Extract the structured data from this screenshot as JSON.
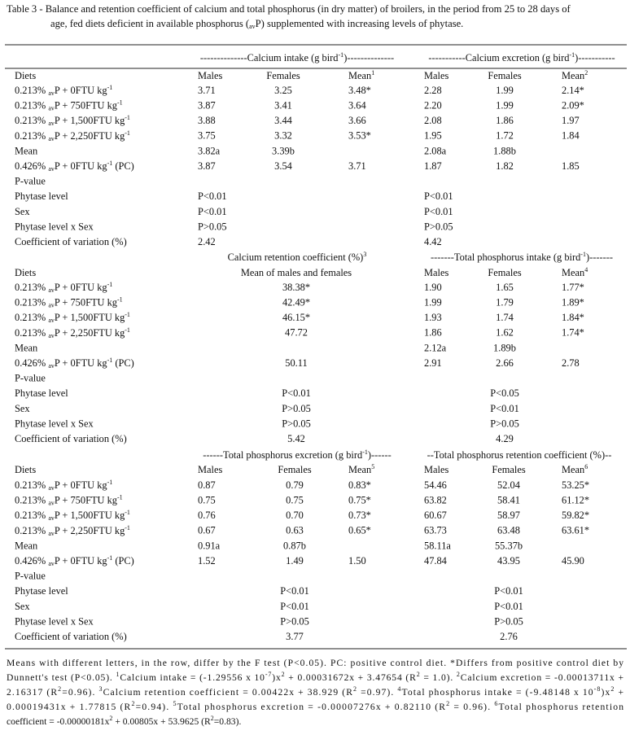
{
  "header": {
    "title": [
      [
        "Table 3 - Balance and retention coefficient of calcium and total phosphorus (in dry matter) of broilers, in the period from 25 to 28 days of"
      ],
      [
        "age, fed diets deficient in available phosphorus (",
        {
          "sub": "av"
        },
        "P) supplemented with increasing levels of phytase."
      ]
    ]
  },
  "table": {
    "sections": [
      {
        "left_header": [
          "--------------Calcium intake (g bird",
          {
            "sup": "-1"
          },
          ")--------------"
        ],
        "right_header": [
          "-----------Calcium excretion (g bird",
          {
            "sup": "-1"
          },
          ")-----------"
        ],
        "columns": {
          "label": "Diets",
          "cells": [
            "Males",
            "Females",
            [
              "Mean",
              {
                "sup": "1"
              }
            ],
            "Males",
            "Females",
            [
              "Mean",
              {
                "sup": "2"
              }
            ]
          ]
        },
        "rows": [
          {
            "label": [
              "0.213% ",
              {
                "sub": "av"
              },
              "P + 0FTU kg",
              {
                "sup": "-1"
              }
            ],
            "cells": [
              "3.71",
              "3.25",
              "3.48*",
              "2.28",
              "1.99",
              "2.14*"
            ]
          },
          {
            "label": [
              "0.213% ",
              {
                "sub": "av"
              },
              "P + 750FTU kg",
              {
                "sup": "-1"
              }
            ],
            "cells": [
              "3.87",
              "3.41",
              "3.64",
              "2.20",
              "1.99",
              "2.09*"
            ]
          },
          {
            "label": [
              "0.213% ",
              {
                "sub": "av"
              },
              "P + 1,500FTU kg",
              {
                "sup": "-1"
              }
            ],
            "cells": [
              "3.88",
              "3.44",
              "3.66",
              "2.08",
              "1.86",
              "1.97"
            ]
          },
          {
            "label": [
              "0.213% ",
              {
                "sub": "av"
              },
              "P + 2,250FTU kg",
              {
                "sup": "-1"
              }
            ],
            "cells": [
              "3.75",
              "3.32",
              "3.53*",
              "1.95",
              "1.72",
              "1.84"
            ]
          },
          {
            "label": "Mean",
            "cells": [
              "3.82a",
              "3.39b",
              null,
              "2.08a",
              "1.88b",
              null
            ]
          },
          {
            "label": [
              "0.426% ",
              {
                "sub": "av"
              },
              "P + 0FTU kg",
              {
                "sup": "-1"
              },
              " (PC)"
            ],
            "cells": [
              "3.87",
              "3.54",
              "3.71",
              "1.87",
              "1.82",
              "1.85"
            ]
          },
          {
            "label": "P-value"
          },
          {
            "label": "Phytase level",
            "cells": [
              "P<0.01",
              null,
              null,
              "P<0.01",
              null,
              null
            ]
          },
          {
            "label": "Sex",
            "cells": [
              "P<0.01",
              null,
              null,
              "P<0.01",
              null,
              null
            ]
          },
          {
            "label": "Phytase level x Sex",
            "cells": [
              "P>0.05",
              null,
              null,
              "P>0.05",
              null,
              null
            ]
          },
          {
            "label": "Coefficient of variation (%)",
            "cells": [
              "2.42",
              null,
              null,
              "4.42",
              null,
              null
            ]
          }
        ]
      },
      {
        "left_header": [
          "Calcium retention coefficient (%)",
          {
            "sup": "3"
          }
        ],
        "right_header": [
          "-------Total phosphorus intake (g bird",
          {
            "sup": "-1"
          },
          ")-------"
        ],
        "columns": {
          "label": "Diets",
          "cells": [
            null,
            "Mean of males and females",
            null,
            "Males",
            "Females",
            [
              "Mean",
              {
                "sup": "4"
              }
            ]
          ]
        },
        "rows": [
          {
            "label": [
              "0.213% ",
              {
                "sub": "av"
              },
              "P + 0FTU kg",
              {
                "sup": "-1"
              }
            ],
            "cells": [
              null,
              "38.38*",
              null,
              "1.90",
              "1.65",
              "1.77*"
            ]
          },
          {
            "label": [
              "0.213% ",
              {
                "sub": "av"
              },
              "P + 750FTU kg",
              {
                "sup": "-1"
              }
            ],
            "cells": [
              null,
              "42.49*",
              null,
              "1.99",
              "1.79",
              "1.89*"
            ]
          },
          {
            "label": [
              "0.213% ",
              {
                "sub": "av"
              },
              "P + 1,500FTU kg",
              {
                "sup": "-1"
              }
            ],
            "cells": [
              null,
              "46.15*",
              null,
              "1.93",
              "1.74",
              "1.84*"
            ]
          },
          {
            "label": [
              "0.213% ",
              {
                "sub": "av"
              },
              "P + 2,250FTU kg",
              {
                "sup": "-1"
              }
            ],
            "cells": [
              null,
              "47.72",
              null,
              "1.86",
              "1.62",
              "1.74*"
            ]
          },
          {
            "label": "Mean",
            "cells": [
              null,
              null,
              null,
              "2.12a",
              "1.89b",
              null
            ]
          },
          {
            "label": [
              "0.426% ",
              {
                "sub": "av"
              },
              "P + 0FTU kg",
              {
                "sup": "-1"
              },
              " (PC)"
            ],
            "cells": [
              null,
              "50.11",
              null,
              "2.91",
              "2.66",
              "2.78"
            ]
          },
          {
            "label": "P-value"
          },
          {
            "label": "Phytase level",
            "cells": [
              null,
              "P<0.01",
              null,
              null,
              "P<0.05",
              null
            ]
          },
          {
            "label": "Sex",
            "cells": [
              null,
              "P>0.05",
              null,
              null,
              "P<0.01",
              null
            ]
          },
          {
            "label": "Phytase level x Sex",
            "cells": [
              null,
              "P>0.05",
              null,
              null,
              "P>0.05",
              null
            ]
          },
          {
            "label": "Coefficient of variation (%)",
            "cells": [
              null,
              "5.42",
              null,
              null,
              "4.29",
              null
            ]
          }
        ]
      },
      {
        "left_header": [
          "------Total phosphorus excretion (g bird",
          {
            "sup": "-1"
          },
          ")------"
        ],
        "right_header": [
          "--Total phosphorus retention coefficient (%)--"
        ],
        "columns": {
          "label": "Diets",
          "cells": [
            "Males",
            "Females",
            [
              "Mean",
              {
                "sup": "5"
              }
            ],
            "Males",
            "Females",
            [
              "Mean",
              {
                "sup": "6"
              }
            ]
          ]
        },
        "rows": [
          {
            "label": [
              "0.213% ",
              {
                "sub": "av"
              },
              "P + 0FTU kg",
              {
                "sup": "-1"
              }
            ],
            "cells": [
              "0.87",
              "0.79",
              "0.83*",
              "54.46",
              "52.04",
              "53.25*"
            ]
          },
          {
            "label": [
              "0.213% ",
              {
                "sub": "av"
              },
              "P + 750FTU kg",
              {
                "sup": "-1"
              }
            ],
            "cells": [
              "0.75",
              "0.75",
              "0.75*",
              "63.82",
              "58.41",
              "61.12*"
            ]
          },
          {
            "label": [
              "0.213% ",
              {
                "sub": "av"
              },
              "P + 1,500FTU kg",
              {
                "sup": "-1"
              }
            ],
            "cells": [
              "0.76",
              "0.70",
              "0.73*",
              "60.67",
              "58.97",
              "59.82*"
            ]
          },
          {
            "label": [
              "0.213% ",
              {
                "sub": "av"
              },
              "P + 2,250FTU kg",
              {
                "sup": "-1"
              }
            ],
            "cells": [
              "0.67",
              "0.63",
              "0.65*",
              "63.73",
              "63.48",
              "63.61*"
            ]
          },
          {
            "label": "Mean",
            "cells": [
              "0.91a",
              "0.87b",
              null,
              "58.11a",
              "55.37b",
              null
            ]
          },
          {
            "label": [
              "0.426% ",
              {
                "sub": "av"
              },
              "P + 0FTU kg",
              {
                "sup": "-1"
              },
              " (PC)"
            ],
            "cells": [
              "1.52",
              "1.49",
              "1.50",
              "47.84",
              "43.95",
              "45.90"
            ]
          },
          {
            "label": "P-value"
          },
          {
            "label": "Phytase level",
            "cells": [
              null,
              "P<0.01",
              null,
              null,
              "P<0.01",
              null
            ]
          },
          {
            "label": "Sex",
            "cells": [
              null,
              "P<0.01",
              null,
              null,
              "P<0.01",
              null
            ]
          },
          {
            "label": "Phytase level x Sex",
            "cells": [
              null,
              "P>0.05",
              null,
              null,
              "P>0.05",
              null
            ]
          },
          {
            "label": "Coefficient of variation (%)",
            "cells": [
              null,
              "3.77",
              null,
              null,
              "2.76",
              null
            ]
          }
        ]
      }
    ]
  },
  "footnote": [
    [
      "Means with different letters, in the row, differ by the F test (P<0.05). PC: positive control diet. *Differs from positive control diet by"
    ],
    [
      "Dunnett's test (P<0.05). ",
      {
        "sup": "1"
      },
      "Calcium intake = (-1.29556 x 10",
      {
        "sup": "-7"
      },
      ")x",
      {
        "sup": "2"
      },
      " + 0.00031672x + 3.47654 (R",
      {
        "sup": "2"
      },
      " = 1.0). ",
      {
        "sup": "2"
      },
      "Calcium excretion = -0.00013711x +"
    ],
    [
      "2.16317 (R",
      {
        "sup": "2"
      },
      "=0.96). ",
      {
        "sup": "3"
      },
      "Calcium retention coefficient = 0.00422x + 38.929 (R",
      {
        "sup": "2"
      },
      " =0.97). ",
      {
        "sup": "4"
      },
      "Total phosphorus intake = (-9.48148 x 10",
      {
        "sup": "-8"
      },
      ")x",
      {
        "sup": "2"
      },
      " +"
    ],
    [
      "0.00019431x + 1.77815 (R",
      {
        "sup": "2"
      },
      "=0.94). ",
      {
        "sup": "5"
      },
      "Total phosphorus excretion = -0.00007276x + 0.82110 (R",
      {
        "sup": "2"
      },
      " = 0.96). ",
      {
        "sup": "6"
      },
      "Total phosphorus retention"
    ],
    [
      "coefficient = -0.00000181x",
      {
        "sup": "2"
      },
      " + 0.00805x + 53.9625 (R",
      {
        "sup": "2"
      },
      "=0.83)."
    ]
  ]
}
